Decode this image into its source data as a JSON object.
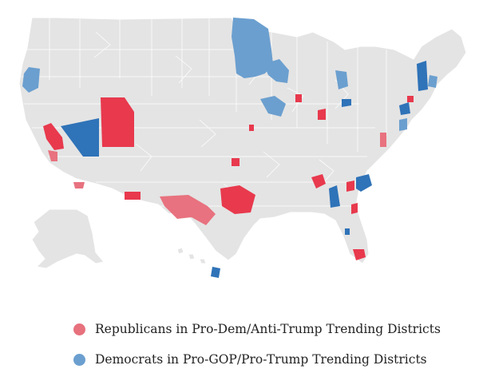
{
  "colors": {
    "land": "#e4e4e4",
    "border": "#ffffff",
    "rep_dark": "#e8394d",
    "rep_light": "#e8727f",
    "dem_dark": "#2f73b8",
    "dem_light": "#6b9fcf"
  },
  "legend": {
    "republicans": {
      "label": "Republicans in Pro-Dem/Anti-Trump Trending Districts",
      "color": "#e7717d"
    },
    "democrats": {
      "label": "Democrats in Pro-GOP/Pro-Trump Trending Districts",
      "color": "#6b9fcf"
    }
  }
}
